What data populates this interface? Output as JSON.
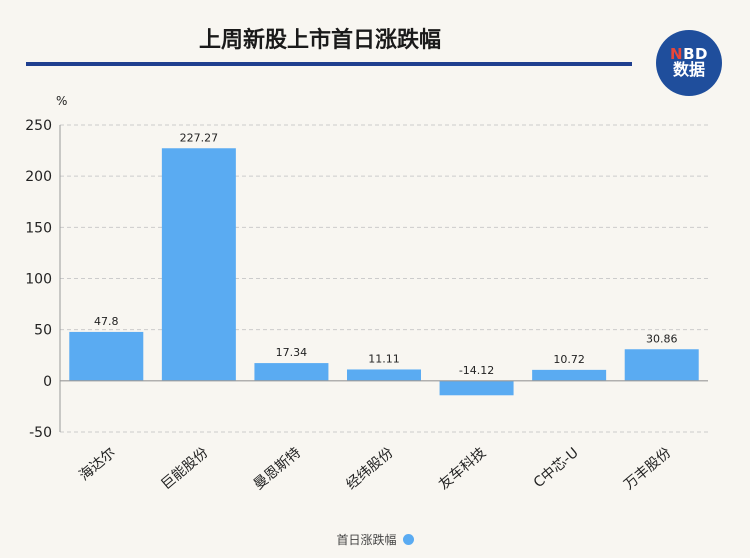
{
  "header": {
    "title": "上周新股上市首日涨跌幅",
    "logo_line1_accent": "N",
    "logo_line1_rest": "BD",
    "logo_line2": "数据"
  },
  "colors": {
    "bar": "#5aabf2",
    "title_rule": "#1f3f8f",
    "logo_bg": "#1f4e9c",
    "logo_accent": "#e8473a",
    "grid": "#cccccc"
  },
  "chart_data": {
    "type": "bar",
    "title": "上周新股上市首日涨跌幅",
    "unit_label": "%",
    "categories": [
      "海达尔",
      "巨能股份",
      "曼恩斯特",
      "经纬股份",
      "友车科技",
      "C中芯-U",
      "万丰股份"
    ],
    "series": [
      {
        "name": "首日涨跌幅",
        "values": [
          47.8,
          227.27,
          17.34,
          11.11,
          -14.12,
          10.72,
          30.86
        ],
        "value_labels": [
          "47.8",
          "227.27",
          "17.34",
          "11.11",
          "-14.12",
          "10.72",
          "30.86"
        ]
      }
    ],
    "ylim": [
      -50,
      250
    ],
    "yticks": [
      -50,
      0,
      50,
      100,
      150,
      200,
      250
    ],
    "grid": true,
    "legend_position": "bottom"
  }
}
